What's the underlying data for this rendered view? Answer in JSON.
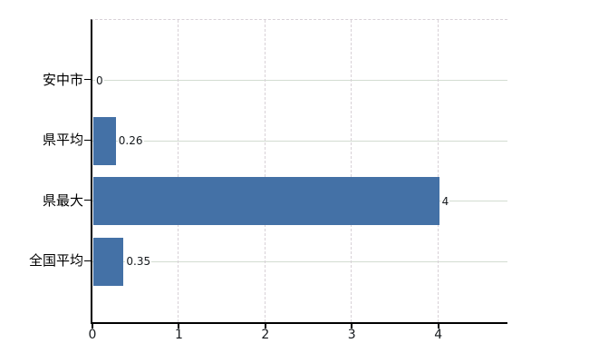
{
  "chart_data": {
    "type": "bar",
    "orientation": "horizontal",
    "title": "",
    "categories": [
      "安中市",
      "県平均",
      "県最大",
      "全国平均"
    ],
    "values": [
      0,
      0.26,
      4,
      0.35
    ],
    "value_labels": [
      "0",
      "0.26",
      "4",
      "0.35"
    ],
    "x_tick_labels": [
      "0",
      "1",
      "2",
      "3",
      "4"
    ],
    "x_tick_values": [
      0,
      1,
      2,
      3,
      4
    ],
    "xlim": [
      0,
      4.8
    ],
    "ylabel": "",
    "xlabel": "",
    "grid": "on",
    "legend": "none",
    "colors": {
      "bar": "#4471a6",
      "horizontal_grid": "#d3dcd1",
      "vertical_grid": "#d8d1d7",
      "axis": "#000000",
      "category_label": "#000000",
      "tick_label": "#15191d",
      "value_label": "#15191d",
      "background": "#ffffff"
    }
  }
}
